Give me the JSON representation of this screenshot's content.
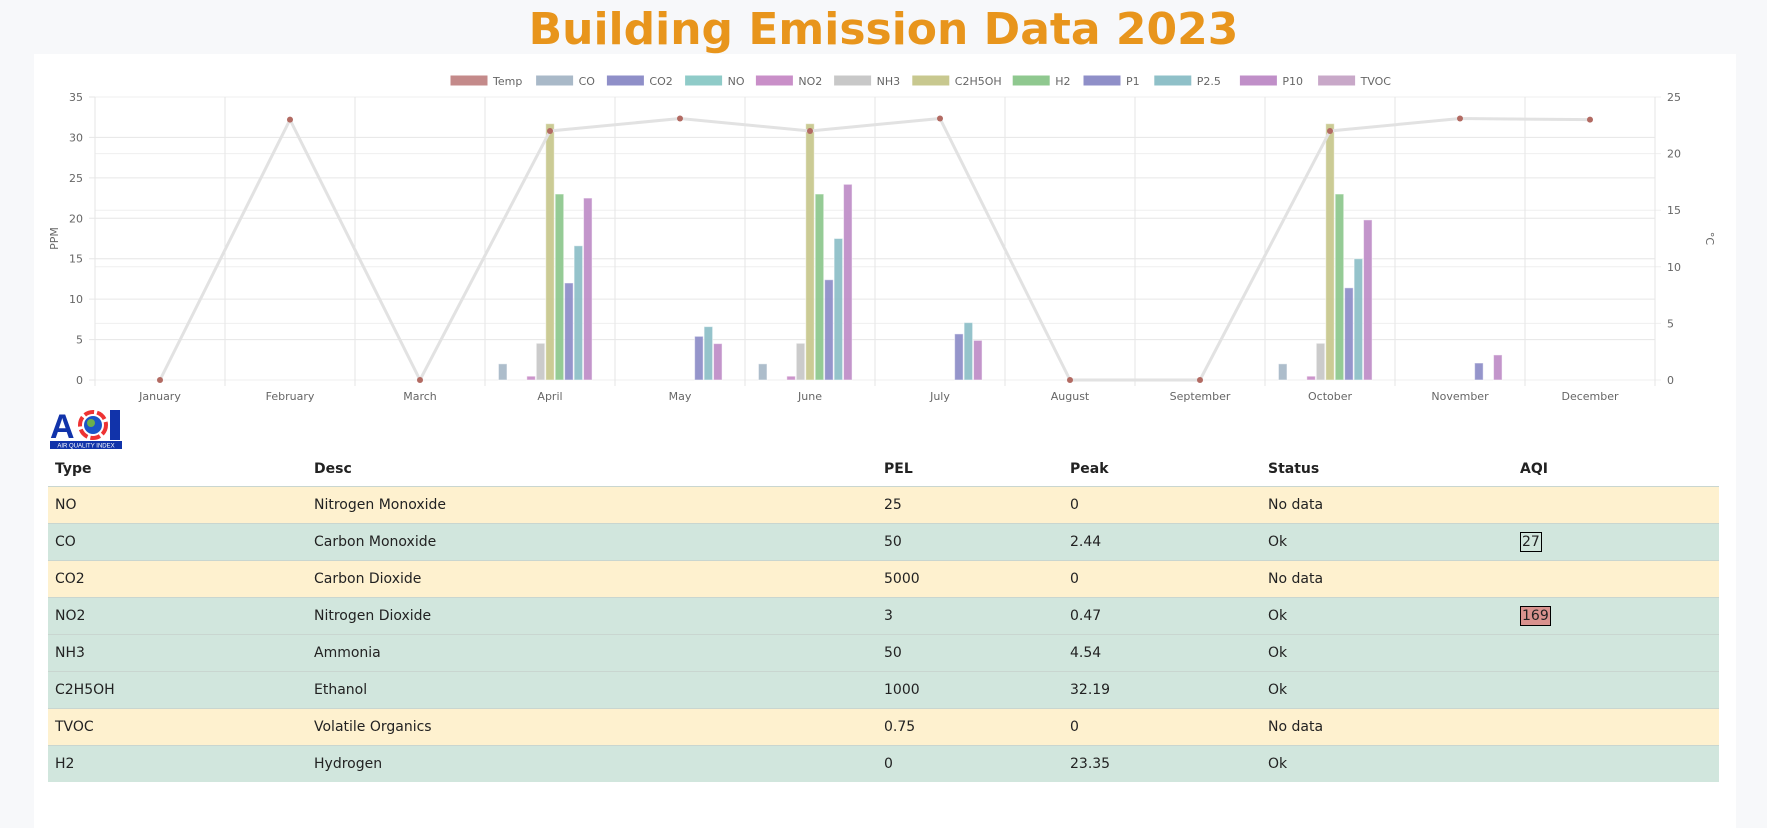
{
  "title": "Building Emission Data 2023",
  "logo_text": "AQI AIR QUALITY INDEX",
  "chart_data": {
    "type": "bar",
    "categories": [
      "January",
      "February",
      "March",
      "April",
      "May",
      "June",
      "July",
      "August",
      "September",
      "October",
      "November",
      "December"
    ],
    "ylabel": "PPM",
    "y2label": "°C",
    "ylim": [
      0,
      35
    ],
    "y2lim": [
      0,
      25
    ],
    "yticks": [
      0,
      5,
      10,
      15,
      20,
      25,
      30,
      35
    ],
    "y2ticks": [
      0,
      5,
      10,
      15,
      20,
      25
    ],
    "grid": true,
    "legend_position": "top",
    "line_series": {
      "name": "Temp",
      "color": "#c48a8a",
      "line_color": "#e2e2e2",
      "axis": "right",
      "values": [
        0,
        23,
        0,
        22,
        23.1,
        22,
        23.1,
        0,
        0,
        22,
        23.1,
        23
      ]
    },
    "series": [
      {
        "name": "CO",
        "color": "#a9b9c8",
        "values": [
          0,
          0,
          0,
          2,
          0,
          2,
          0,
          0,
          0,
          2,
          0,
          0
        ]
      },
      {
        "name": "CO2",
        "color": "#8f8fc8",
        "values": [
          0,
          0,
          0,
          0,
          0,
          0,
          0,
          0,
          0,
          0,
          0,
          0
        ]
      },
      {
        "name": "NO",
        "color": "#8fcbc8",
        "values": [
          0,
          0,
          0,
          0,
          0,
          0,
          0,
          0,
          0,
          0,
          0,
          0
        ]
      },
      {
        "name": "NO2",
        "color": "#c98fc8",
        "values": [
          0,
          0,
          0,
          0.47,
          0,
          0.47,
          0,
          0,
          0,
          0.47,
          0,
          0
        ]
      },
      {
        "name": "NH3",
        "color": "#c8c8c8",
        "values": [
          0,
          0,
          0,
          4.54,
          0,
          4.54,
          0,
          0,
          0,
          4.54,
          0,
          0
        ]
      },
      {
        "name": "C2H5OH",
        "color": "#c8c88f",
        "values": [
          0,
          0,
          0,
          31.7,
          0,
          31.7,
          0,
          0,
          0,
          31.7,
          0,
          0
        ]
      },
      {
        "name": "H2",
        "color": "#8fc88f",
        "values": [
          0,
          0,
          0,
          23,
          0,
          23,
          0,
          0,
          0,
          23,
          0,
          0
        ]
      },
      {
        "name": "P1",
        "color": "#8f8fc8",
        "values": [
          0,
          0,
          0,
          12,
          5.4,
          12.4,
          5.7,
          0,
          0,
          11.4,
          2.1,
          0
        ]
      },
      {
        "name": "P2.5",
        "color": "#8fc0c8",
        "values": [
          0,
          0,
          0,
          16.6,
          6.6,
          17.5,
          7.1,
          0,
          0,
          15,
          0,
          0
        ]
      },
      {
        "name": "P10",
        "color": "#c08fc8",
        "values": [
          0,
          0,
          0,
          22.5,
          4.5,
          24.2,
          4.9,
          0,
          0,
          19.8,
          3.1,
          0
        ]
      },
      {
        "name": "TVOC",
        "color": "#c8a8c8",
        "values": [
          0,
          0,
          0,
          0,
          0,
          0,
          0,
          0,
          0,
          0,
          0,
          0
        ]
      }
    ]
  },
  "table": {
    "headers": [
      "Type",
      "Desc",
      "PEL",
      "Peak",
      "Status",
      "AQI"
    ],
    "rows": [
      {
        "type": "NO",
        "desc": "Nitrogen Monoxide",
        "pel": "25",
        "peak": "0",
        "status": "No data",
        "aqi": ""
      },
      {
        "type": "CO",
        "desc": "Carbon Monoxide",
        "pel": "50",
        "peak": "2.44",
        "status": "Ok",
        "aqi": "27",
        "aqi_color": "#d1e6dd"
      },
      {
        "type": "CO2",
        "desc": "Carbon Dioxide",
        "pel": "5000",
        "peak": "0",
        "status": "No data",
        "aqi": ""
      },
      {
        "type": "NO2",
        "desc": "Nitrogen Dioxide",
        "pel": "3",
        "peak": "0.47",
        "status": "Ok",
        "aqi": "169",
        "aqi_color": "#d9928e"
      },
      {
        "type": "NH3",
        "desc": "Ammonia",
        "pel": "50",
        "peak": "4.54",
        "status": "Ok",
        "aqi": ""
      },
      {
        "type": "C2H5OH",
        "desc": "Ethanol",
        "pel": "1000",
        "peak": "32.19",
        "status": "Ok",
        "aqi": ""
      },
      {
        "type": "TVOC",
        "desc": "Volatile Organics",
        "pel": "0.75",
        "peak": "0",
        "status": "No data",
        "aqi": ""
      },
      {
        "type": "H2",
        "desc": "Hydrogen",
        "pel": "0",
        "peak": "23.35",
        "status": "Ok",
        "aqi": ""
      }
    ]
  }
}
